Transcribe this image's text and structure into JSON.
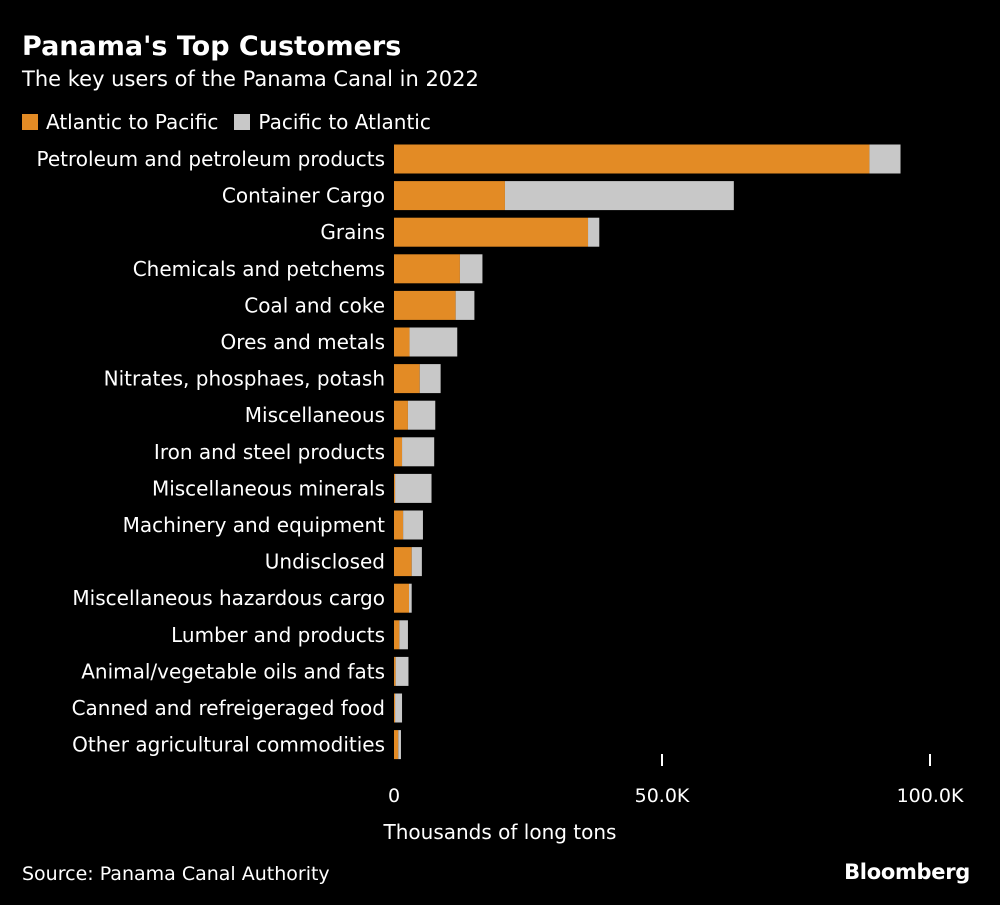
{
  "colors": {
    "background": "#000000",
    "text": "#ffffff",
    "series_atlantic": "#e38b25",
    "series_pacific": "#c8c8c8"
  },
  "chart_data": {
    "type": "bar",
    "orientation": "horizontal",
    "stacked": true,
    "title": "Panama's Top Customers",
    "subtitle": "The key users of the Panama Canal in 2022",
    "xlabel": "Thousands of long tons",
    "ylabel": "",
    "xlim": [
      0,
      100000
    ],
    "xticks": [
      {
        "value": 0,
        "label": "0"
      },
      {
        "value": 50000,
        "label": "50.0K"
      },
      {
        "value": 100000,
        "label": "100.0K"
      }
    ],
    "legend_position": "top-left",
    "grid": false,
    "categories": [
      "Petroleum and petroleum products",
      "Container Cargo",
      "Grains",
      "Chemicals and petchems",
      "Coal and coke",
      "Ores and metals",
      "Nitrates, phosphaes, potash",
      "Miscellaneous",
      "Iron and steel products",
      "Miscellaneous minerals",
      "Machinery and equipment",
      "Undisclosed",
      "Miscellaneous hazardous cargo",
      "Lumber and products",
      "Animal/vegetable oils and fats",
      "Canned and refreigeraged food",
      "Other agricultural commodities"
    ],
    "series": [
      {
        "name": "Atlantic to Pacific",
        "color": "#e38b25",
        "values": [
          88700,
          20700,
          36200,
          12300,
          11500,
          2900,
          4800,
          2600,
          1500,
          200,
          1700,
          3300,
          2800,
          1000,
          300,
          200,
          800
        ]
      },
      {
        "name": "Pacific to Atlantic",
        "color": "#c8c8c8",
        "values": [
          5800,
          42700,
          2100,
          4200,
          3500,
          8900,
          3900,
          5100,
          6000,
          6800,
          3700,
          1900,
          500,
          1600,
          2400,
          1300,
          500
        ]
      }
    ]
  },
  "footer": {
    "source": "Source: Panama Canal Authority",
    "brand": "Bloomberg"
  }
}
